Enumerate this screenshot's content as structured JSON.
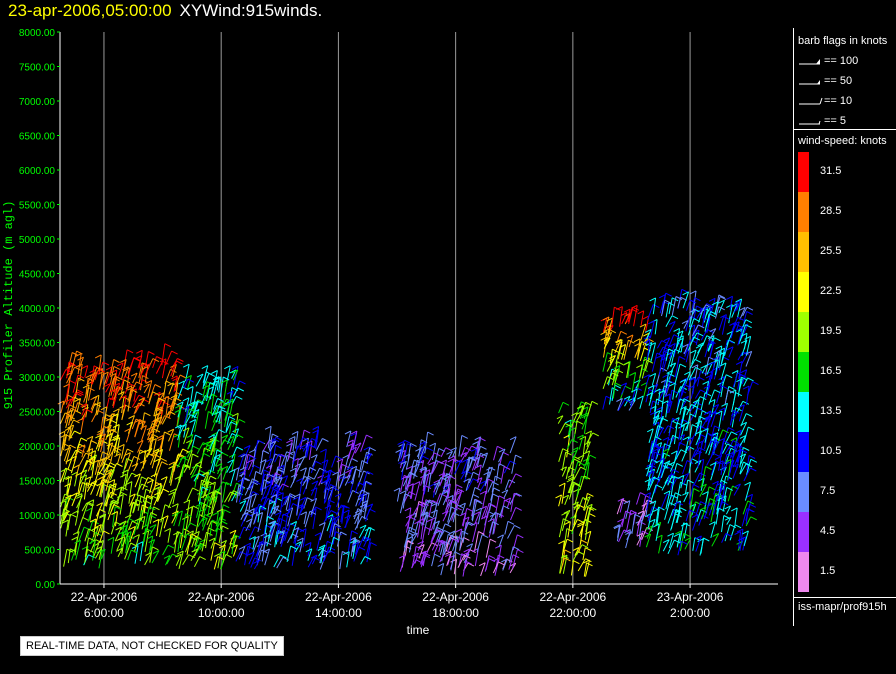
{
  "header": {
    "datetime": "23-apr-2006,05:00:00",
    "product": "XYWind:915winds."
  },
  "legend": {
    "barb_title": "barb flags in knots",
    "barbs": [
      {
        "label": "== 100"
      },
      {
        "label": "== 50"
      },
      {
        "label": "== 10"
      },
      {
        "label": "== 5"
      }
    ],
    "speed_title": "wind-speed: knots",
    "scale": [
      {
        "label": "31.5",
        "color": "#ff0000"
      },
      {
        "label": "28.5",
        "color": "#ff7f00"
      },
      {
        "label": "25.5",
        "color": "#ffbf00"
      },
      {
        "label": "22.5",
        "color": "#ffff00"
      },
      {
        "label": "19.5",
        "color": "#9fff00"
      },
      {
        "label": "16.5",
        "color": "#00e000"
      },
      {
        "label": "13.5",
        "color": "#00ffff"
      },
      {
        "label": "10.5",
        "color": "#0000ff"
      },
      {
        "label": "7.5",
        "color": "#6a8cff"
      },
      {
        "label": "4.5",
        "color": "#9a30ff"
      },
      {
        "label": "1.5",
        "color": "#ee88ee"
      }
    ],
    "source": "iss-mapr/prof915h"
  },
  "footer": {
    "notice": "REAL-TIME DATA, NOT CHECKED FOR QUALITY"
  },
  "chart_data": {
    "type": "scatter",
    "title": "23-apr-2006,05:00:00  XYWind:915winds.",
    "xlabel": "time",
    "ylabel": "915 Profiler Altitude (m agl)",
    "ylim": [
      0,
      8000
    ],
    "yticks": [
      "0.00",
      "500.00",
      "1000.00",
      "1500.00",
      "2000.00",
      "2500.00",
      "3000.00",
      "3500.00",
      "4000.00",
      "4500.00",
      "5000.00",
      "5500.00",
      "6000.00",
      "6500.00",
      "7000.00",
      "7500.00",
      "8000.00"
    ],
    "xlim": [
      "22-Apr-2006 04:30:00",
      "23-Apr-2006 05:00:00"
    ],
    "xticks": [
      {
        "date": "22-Apr-2006",
        "time": "6:00:00"
      },
      {
        "date": "22-Apr-2006",
        "time": "10:00:00"
      },
      {
        "date": "22-Apr-2006",
        "time": "14:00:00"
      },
      {
        "date": "22-Apr-2006",
        "time": "18:00:00"
      },
      {
        "date": "22-Apr-2006",
        "time": "22:00:00"
      },
      {
        "date": "23-Apr-2006",
        "time": "2:00:00"
      }
    ],
    "vertical_grid": true,
    "mark": "wind barbs colored by wind speed (knots)",
    "clusters": [
      {
        "time_start": "22-Apr-2006 04:30",
        "time_end": "22-Apr-2006 08:30",
        "alt_min": 200,
        "alt_max": 3200,
        "speed_top": 31.5,
        "speed_bottom": 16.5
      },
      {
        "time_start": "22-Apr-2006 08:30",
        "time_end": "22-Apr-2006 10:30",
        "alt_min": 200,
        "alt_max": 3000,
        "speed_top": 13.5,
        "speed_bottom": 19.5
      },
      {
        "time_start": "22-Apr-2006 10:30",
        "time_end": "22-Apr-2006 15:00",
        "alt_min": 200,
        "alt_max": 2000,
        "speed_top": 7.5,
        "speed_bottom": 10.5
      },
      {
        "time_start": "22-Apr-2006 16:00",
        "time_end": "22-Apr-2006 20:00",
        "alt_min": 100,
        "alt_max": 1900,
        "speed_top": 7.5,
        "speed_bottom": 4.5
      },
      {
        "time_start": "22-Apr-2006 21:30",
        "time_end": "22-Apr-2006 22:30",
        "alt_min": 100,
        "alt_max": 2500,
        "speed_top": 16.5,
        "speed_bottom": 22.5
      },
      {
        "time_start": "22-Apr-2006 23:00",
        "time_end": "23-Apr-2006 00:30",
        "alt_min": 2500,
        "alt_max": 3800,
        "speed_top": 31.5,
        "speed_bottom": 10.5
      },
      {
        "time_start": "22-Apr-2006 23:30",
        "time_end": "23-Apr-2006 00:30",
        "alt_min": 500,
        "alt_max": 1200,
        "speed_top": 4.5,
        "speed_bottom": 4.5
      },
      {
        "time_start": "23-Apr-2006 00:30",
        "time_end": "23-Apr-2006 04:00",
        "alt_min": 400,
        "alt_max": 4000,
        "speed_top": 10.5,
        "speed_bottom": 13.5
      }
    ]
  }
}
